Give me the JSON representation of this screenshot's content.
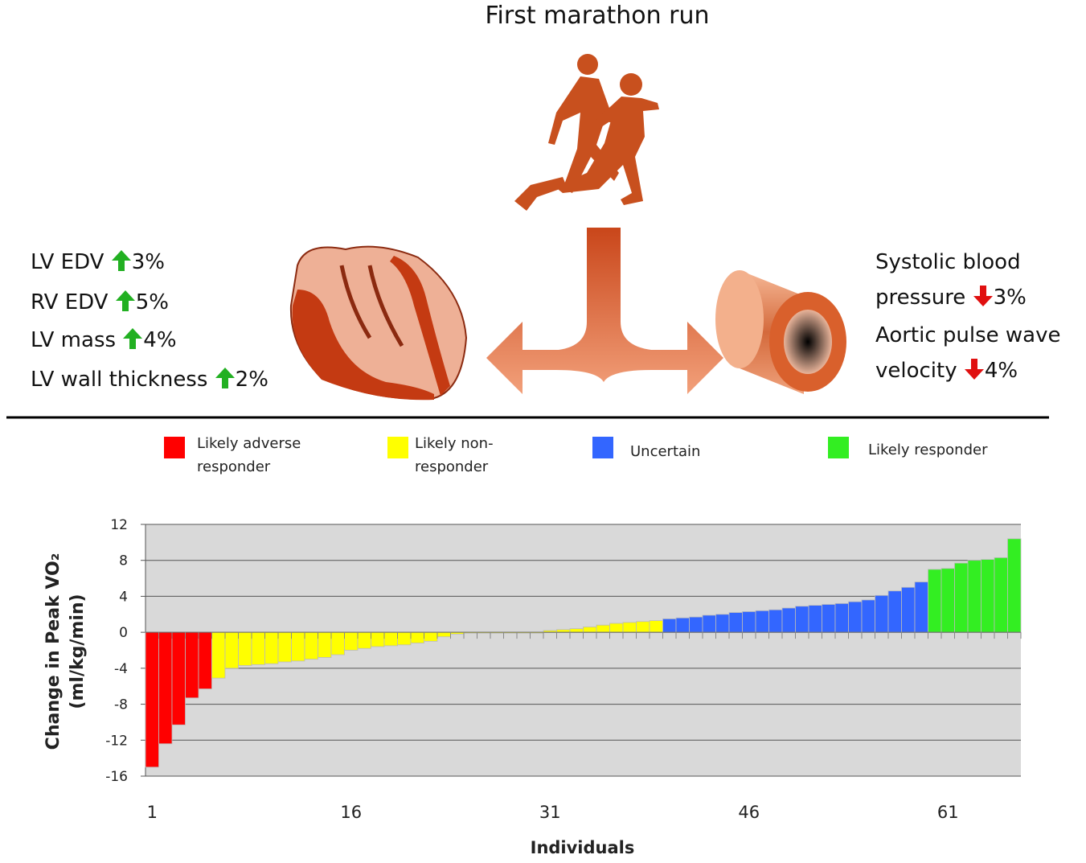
{
  "header": {
    "title": "First marathon run"
  },
  "heart_changes": [
    {
      "label": "LV EDV",
      "change": "3%"
    },
    {
      "label": "RV EDV",
      "change": "5%"
    },
    {
      "label": "LV mass",
      "change": "4%"
    },
    {
      "label": "LV wall thickness",
      "change": "2%"
    }
  ],
  "vascular_changes": [
    {
      "label": "Systolic blood pressure",
      "change": "3%"
    },
    {
      "label": "Aortic pulse wave velocity",
      "change": "4%"
    }
  ],
  "chart_data": {
    "type": "bar",
    "x_label": "Individuals",
    "y_label_lines": [
      "Change in Peak VO₂",
      "(ml/kg/min)"
    ],
    "x": [
      1,
      2,
      3,
      4,
      5,
      6,
      7,
      8,
      9,
      10,
      11,
      12,
      13,
      14,
      15,
      16,
      17,
      18,
      19,
      20,
      21,
      22,
      23,
      24,
      25,
      26,
      27,
      28,
      29,
      30,
      31,
      32,
      33,
      34,
      35,
      36,
      37,
      38,
      39,
      40,
      41,
      42,
      43,
      44,
      45,
      46,
      47,
      48,
      49,
      50,
      51,
      52,
      53,
      54,
      55,
      56,
      57,
      58,
      59,
      60,
      61,
      62,
      63,
      64,
      65,
      66
    ],
    "xlim": [
      0.5,
      66.5
    ],
    "xticks": [
      1,
      16,
      31,
      46,
      61
    ],
    "ylim": [
      -16,
      12
    ],
    "yticks": [
      12,
      8,
      4,
      0,
      -4,
      -8,
      -12,
      -16
    ],
    "grid": true,
    "plot_background": "#d9d9d9",
    "series": [
      {
        "name": "Likely adverse responder",
        "color": "#ff0000",
        "values": [
          -15,
          -12.4,
          -10.3,
          -7.3,
          -6.3,
          null,
          null,
          null,
          null,
          null,
          null,
          null,
          null,
          null,
          null,
          null,
          null,
          null,
          null,
          null,
          null,
          null,
          null,
          null,
          null,
          null,
          null,
          null,
          null,
          null,
          null,
          null,
          null,
          null,
          null,
          null,
          null,
          null,
          null,
          null,
          null,
          null,
          null,
          null,
          null,
          null,
          null,
          null,
          null,
          null,
          null,
          null,
          null,
          null,
          null,
          null,
          null,
          null,
          null,
          null,
          null,
          null,
          null,
          null,
          null,
          null
        ]
      },
      {
        "name": "Likely non-responder",
        "color": "#ffff00",
        "values": [
          null,
          null,
          null,
          null,
          null,
          -5.1,
          -4.0,
          -3.7,
          -3.6,
          -3.5,
          -3.3,
          -3.2,
          -3.0,
          -2.8,
          -2.5,
          -2.0,
          -1.8,
          -1.6,
          -1.5,
          -1.4,
          -1.2,
          -1.0,
          -0.5,
          -0.2,
          -0.1,
          -0.1,
          -0.1,
          -0.1,
          -0.1,
          -0.1,
          0.2,
          0.3,
          0.4,
          0.6,
          0.8,
          1.0,
          1.1,
          1.2,
          1.3,
          null,
          null,
          null,
          null,
          null,
          null,
          null,
          null,
          null,
          null,
          null,
          null,
          null,
          null,
          null,
          null,
          null,
          null,
          null,
          null,
          null,
          null,
          null,
          null,
          null,
          null,
          null
        ]
      },
      {
        "name": "Uncertain",
        "color": "#3366ff",
        "values": [
          null,
          null,
          null,
          null,
          null,
          null,
          null,
          null,
          null,
          null,
          null,
          null,
          null,
          null,
          null,
          null,
          null,
          null,
          null,
          null,
          null,
          null,
          null,
          null,
          null,
          null,
          null,
          null,
          null,
          null,
          null,
          null,
          null,
          null,
          null,
          null,
          null,
          null,
          null,
          1.5,
          1.6,
          1.7,
          1.9,
          2.0,
          2.2,
          2.3,
          2.4,
          2.5,
          2.7,
          2.9,
          3.0,
          3.1,
          3.2,
          3.4,
          3.6,
          4.1,
          4.6,
          5.0,
          5.6,
          null,
          null,
          null,
          null,
          null,
          null,
          null
        ]
      },
      {
        "name": "Likely responder",
        "color": "#33ee22",
        "values": [
          null,
          null,
          null,
          null,
          null,
          null,
          null,
          null,
          null,
          null,
          null,
          null,
          null,
          null,
          null,
          null,
          null,
          null,
          null,
          null,
          null,
          null,
          null,
          null,
          null,
          null,
          null,
          null,
          null,
          null,
          null,
          null,
          null,
          null,
          null,
          null,
          null,
          null,
          null,
          null,
          null,
          null,
          null,
          null,
          null,
          null,
          null,
          null,
          null,
          null,
          null,
          null,
          null,
          null,
          null,
          null,
          null,
          null,
          null,
          7.0,
          7.1,
          7.7,
          8.0,
          8.1,
          8.3,
          10.4
        ]
      }
    ]
  }
}
